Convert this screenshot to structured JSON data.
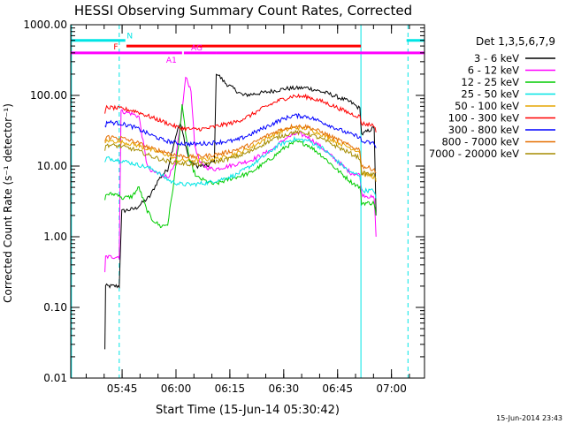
{
  "chart_data": {
    "type": "line",
    "title": "HESSI Observing Summary Count Rates, Corrected",
    "xlabel": "Start Time (15-Jun-14 05:30:42)",
    "ylabel": "Corrected Count Rate (s⁻¹ detector⁻¹)",
    "yscale": "log",
    "ylim": [
      0.01,
      1000
    ],
    "xlim_minutes": [
      0,
      98.5
    ],
    "yticks": [
      "1000.00",
      "100.00",
      "10.00",
      "1.00",
      "0.10",
      "0.01"
    ],
    "xticks": [
      "05:45",
      "06:00",
      "06:15",
      "06:30",
      "06:45",
      "07:00"
    ],
    "legend_title": "Det 1,3,5,6,7,9",
    "legend_position": "right",
    "timestamp": "15-Jun-2014 23:43",
    "flags": [
      {
        "label": "N",
        "color": "#00e5e5",
        "value": 600,
        "spans": [
          [
            0,
            15.2
          ],
          [
            93.5,
            106
          ]
        ]
      },
      {
        "label": "F",
        "color": "#ff0000",
        "value": 500,
        "spans": [
          [
            15.5,
            80.8
          ]
        ]
      },
      {
        "label": "AG",
        "color": "#ff00ff",
        "value": 400,
        "spans": [
          [
            31.5,
            40.5
          ]
        ]
      },
      {
        "label": "A1",
        "color": "#ff00ff",
        "value": 400,
        "spans": [
          [
            0,
            31.0
          ],
          [
            40.5,
            98.5
          ]
        ]
      }
    ],
    "vlines": [
      {
        "t": 0.2,
        "color": "#00e5e5",
        "dashed": false
      },
      {
        "t": 13.5,
        "color": "#00e5e5",
        "dashed": true
      },
      {
        "t": 80.8,
        "color": "#00e5e5",
        "dashed": false
      },
      {
        "t": 93.9,
        "color": "#00e5e5",
        "dashed": true
      }
    ],
    "series": [
      {
        "name": "3 - 6 keV",
        "color": "#000000",
        "points": [
          [
            9.5,
            0.025
          ],
          [
            9.7,
            0.2
          ],
          [
            13.5,
            0.2
          ],
          [
            14.2,
            2.3
          ],
          [
            18,
            2.5
          ],
          [
            20.5,
            3.2
          ],
          [
            22,
            3.7
          ],
          [
            24.5,
            6.5
          ],
          [
            27,
            9
          ],
          [
            28,
            15
          ],
          [
            29.5,
            30
          ],
          [
            30.5,
            40
          ],
          [
            31.5,
            25
          ],
          [
            33,
            12
          ],
          [
            35,
            10
          ],
          [
            38,
            10
          ],
          [
            40,
            12
          ],
          [
            40.5,
            210
          ],
          [
            43,
            150
          ],
          [
            48,
            100
          ],
          [
            54,
            110
          ],
          [
            60,
            125
          ],
          [
            66,
            128
          ],
          [
            72,
            105
          ],
          [
            78,
            80
          ],
          [
            80.5,
            65
          ],
          [
            81,
            28
          ],
          [
            84.5,
            35
          ],
          [
            85,
            2
          ]
        ]
      },
      {
        "name": "6 - 12 keV",
        "color": "#ff00ff",
        "points": [
          [
            9.5,
            0.3
          ],
          [
            9.7,
            0.52
          ],
          [
            13.5,
            0.52
          ],
          [
            14,
            60
          ],
          [
            17,
            55
          ],
          [
            19,
            50
          ],
          [
            21,
            12
          ],
          [
            22,
            8.5
          ],
          [
            24,
            8
          ],
          [
            27,
            7
          ],
          [
            29,
            10
          ],
          [
            31,
            60
          ],
          [
            32,
            180
          ],
          [
            33.5,
            120
          ],
          [
            34.5,
            20
          ],
          [
            36,
            11
          ],
          [
            38,
            9.5
          ],
          [
            40,
            9
          ],
          [
            44,
            10
          ],
          [
            50,
            12
          ],
          [
            56,
            17
          ],
          [
            60,
            25
          ],
          [
            63,
            29
          ],
          [
            66,
            26
          ],
          [
            70,
            18
          ],
          [
            74,
            12
          ],
          [
            78,
            8
          ],
          [
            80.5,
            7.5
          ],
          [
            81,
            4
          ],
          [
            84.5,
            3.5
          ],
          [
            85,
            1
          ]
        ]
      },
      {
        "name": "12 - 25 keV",
        "color": "#00cc00",
        "points": [
          [
            9.5,
            3.5
          ],
          [
            10,
            4
          ],
          [
            13.5,
            4
          ],
          [
            14,
            3.5
          ],
          [
            17,
            3.7
          ],
          [
            19,
            5
          ],
          [
            21,
            2.5
          ],
          [
            22.5,
            1.8
          ],
          [
            25,
            1.4
          ],
          [
            27,
            1.5
          ],
          [
            28.5,
            5
          ],
          [
            30,
            20
          ],
          [
            31,
            70
          ],
          [
            32,
            30
          ],
          [
            33,
            12
          ],
          [
            35,
            7
          ],
          [
            38,
            6
          ],
          [
            40,
            5.5
          ],
          [
            44,
            6.5
          ],
          [
            50,
            8
          ],
          [
            56,
            13
          ],
          [
            60,
            19
          ],
          [
            63,
            22
          ],
          [
            66,
            20
          ],
          [
            70,
            14
          ],
          [
            74,
            9
          ],
          [
            78,
            6
          ],
          [
            80.5,
            5
          ],
          [
            81,
            3
          ],
          [
            84.5,
            3
          ],
          [
            85,
            2
          ]
        ]
      },
      {
        "name": "25 - 50 keV",
        "color": "#00e5e5",
        "points": [
          [
            9.5,
            11
          ],
          [
            10,
            13
          ],
          [
            14,
            12
          ],
          [
            17,
            11
          ],
          [
            20,
            10
          ],
          [
            23,
            9
          ],
          [
            26,
            7
          ],
          [
            28,
            6
          ],
          [
            31,
            5.5
          ],
          [
            34,
            5.5
          ],
          [
            38,
            5.8
          ],
          [
            42,
            6.5
          ],
          [
            46,
            7.5
          ],
          [
            50,
            10
          ],
          [
            54,
            14
          ],
          [
            58,
            20
          ],
          [
            62,
            24
          ],
          [
            66,
            23
          ],
          [
            70,
            18
          ],
          [
            74,
            12
          ],
          [
            78,
            8
          ],
          [
            80.5,
            7.5
          ],
          [
            81,
            4.5
          ],
          [
            84.5,
            4.5
          ],
          [
            85,
            3.5
          ]
        ]
      },
      {
        "name": "50 - 100 keV",
        "color": "#e5a500",
        "points": [
          [
            9.5,
            20
          ],
          [
            10,
            23
          ],
          [
            14,
            22
          ],
          [
            18,
            20
          ],
          [
            22,
            17
          ],
          [
            26,
            15
          ],
          [
            30,
            12
          ],
          [
            34,
            12
          ],
          [
            38,
            12.5
          ],
          [
            42,
            13
          ],
          [
            46,
            15
          ],
          [
            50,
            18
          ],
          [
            54,
            24
          ],
          [
            58,
            30
          ],
          [
            62,
            35
          ],
          [
            66,
            34
          ],
          [
            70,
            28
          ],
          [
            74,
            22
          ],
          [
            78,
            18
          ],
          [
            80.5,
            16
          ],
          [
            81,
            8
          ],
          [
            84.5,
            7
          ],
          [
            85,
            6
          ]
        ]
      },
      {
        "name": "100 - 300 keV",
        "color": "#ff0000",
        "points": [
          [
            9.5,
            55
          ],
          [
            10,
            68
          ],
          [
            14,
            65
          ],
          [
            18,
            60
          ],
          [
            22,
            50
          ],
          [
            26,
            42
          ],
          [
            30,
            35
          ],
          [
            34,
            33
          ],
          [
            38,
            34
          ],
          [
            42,
            38
          ],
          [
            46,
            42
          ],
          [
            50,
            52
          ],
          [
            54,
            68
          ],
          [
            58,
            85
          ],
          [
            62,
            98
          ],
          [
            66,
            95
          ],
          [
            70,
            82
          ],
          [
            74,
            68
          ],
          [
            78,
            55
          ],
          [
            80.5,
            50
          ],
          [
            81,
            40
          ],
          [
            84.5,
            38
          ],
          [
            85,
            30
          ]
        ]
      },
      {
        "name": "300 - 800 keV",
        "color": "#0000ff",
        "points": [
          [
            9.5,
            35
          ],
          [
            10,
            42
          ],
          [
            14,
            40
          ],
          [
            18,
            35
          ],
          [
            22,
            28
          ],
          [
            26,
            23
          ],
          [
            30,
            21
          ],
          [
            34,
            20.5
          ],
          [
            38,
            21
          ],
          [
            42,
            22
          ],
          [
            46,
            23
          ],
          [
            50,
            28
          ],
          [
            54,
            35
          ],
          [
            58,
            44
          ],
          [
            62,
            52
          ],
          [
            66,
            50
          ],
          [
            70,
            42
          ],
          [
            74,
            34
          ],
          [
            78,
            28
          ],
          [
            80.5,
            26
          ],
          [
            81,
            22
          ],
          [
            84.5,
            21
          ],
          [
            85,
            18
          ]
        ]
      },
      {
        "name": "800 - 7000 keV",
        "color": "#e56e00",
        "points": [
          [
            9.5,
            22
          ],
          [
            10,
            26
          ],
          [
            14,
            25
          ],
          [
            18,
            22
          ],
          [
            22,
            18
          ],
          [
            26,
            16
          ],
          [
            30,
            14
          ],
          [
            34,
            13.5
          ],
          [
            38,
            14
          ],
          [
            42,
            15
          ],
          [
            46,
            17
          ],
          [
            50,
            20
          ],
          [
            54,
            26
          ],
          [
            58,
            32
          ],
          [
            62,
            37
          ],
          [
            66,
            36
          ],
          [
            70,
            30
          ],
          [
            74,
            24
          ],
          [
            78,
            19
          ],
          [
            80.5,
            17
          ],
          [
            81,
            10
          ],
          [
            84.5,
            9
          ],
          [
            85,
            8
          ]
        ]
      },
      {
        "name": "7000 - 20000 keV",
        "color": "#a58c00",
        "points": [
          [
            9.5,
            17
          ],
          [
            10,
            20
          ],
          [
            14,
            19
          ],
          [
            18,
            17
          ],
          [
            22,
            14
          ],
          [
            26,
            12
          ],
          [
            30,
            11
          ],
          [
            34,
            10.5
          ],
          [
            38,
            11
          ],
          [
            42,
            12
          ],
          [
            46,
            13.5
          ],
          [
            50,
            16
          ],
          [
            54,
            21
          ],
          [
            58,
            26
          ],
          [
            62,
            30
          ],
          [
            66,
            29
          ],
          [
            70,
            24
          ],
          [
            74,
            19
          ],
          [
            78,
            15
          ],
          [
            80.5,
            13
          ],
          [
            81,
            8
          ],
          [
            84.5,
            7.5
          ],
          [
            85,
            6.5
          ]
        ]
      }
    ]
  }
}
